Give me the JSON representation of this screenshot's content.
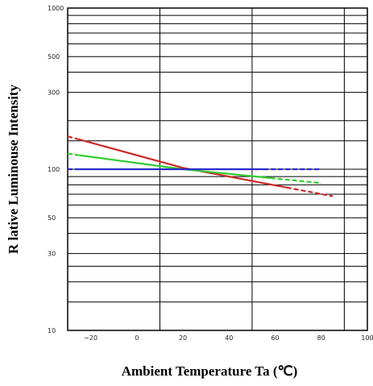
{
  "chart_data": {
    "type": "line",
    "xlabel": "Ambient Temperature Ta (℃)",
    "ylabel": "R  lative Luminouse Intensity",
    "x_ticks": [
      -20,
      0,
      20,
      40,
      60,
      80,
      100
    ],
    "x_tick_labels": [
      "−20",
      "0",
      "20",
      "40",
      "60",
      "80",
      "100"
    ],
    "y_ticks": [
      10,
      30,
      50,
      100,
      300,
      500,
      1000
    ],
    "y_tick_labels": [
      "10",
      "30",
      "50",
      "100",
      "300",
      "500",
      "1000"
    ],
    "xlim": [
      -30,
      100
    ],
    "ylim": [
      10,
      1000
    ],
    "y_scale": "log",
    "grid": true,
    "series": [
      {
        "color": "#cc2a2a",
        "x": [
          -30,
          20,
          85
        ],
        "y": [
          160,
          102,
          68
        ],
        "dashed_segments": [
          [
            -30,
            -25
          ],
          [
            65,
            85
          ]
        ]
      },
      {
        "color": "#33cc33",
        "x": [
          -30,
          20,
          80
        ],
        "y": [
          125,
          100,
          82
        ],
        "dashed_segments": [
          [
            -30,
            -25
          ],
          [
            58,
            80
          ]
        ]
      },
      {
        "color": "#2a2acc",
        "x": [
          -30,
          80
        ],
        "y": [
          100,
          100
        ],
        "dashed_segments": [
          [
            -30,
            -25
          ],
          [
            55,
            80
          ]
        ]
      }
    ]
  }
}
